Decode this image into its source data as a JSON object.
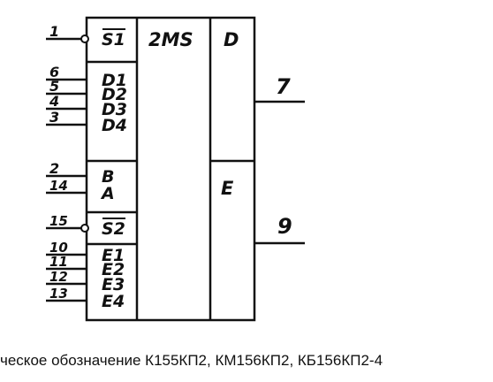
{
  "symbol": {
    "function": "2MS",
    "outputs_header": "D",
    "output_section": "E",
    "inputs": [
      {
        "pin": "1",
        "label": "S1",
        "inverted": true
      },
      {
        "pin": "6",
        "label": "D1",
        "inverted": false
      },
      {
        "pin": "5",
        "label": "D2",
        "inverted": false
      },
      {
        "pin": "4",
        "label": "D3",
        "inverted": false
      },
      {
        "pin": "3",
        "label": "D4",
        "inverted": false
      },
      {
        "pin": "2",
        "label": "B",
        "inverted": false
      },
      {
        "pin": "14",
        "label": "A",
        "inverted": false
      },
      {
        "pin": "15",
        "label": "S2",
        "inverted": true
      },
      {
        "pin": "10",
        "label": "E1",
        "inverted": false
      },
      {
        "pin": "11",
        "label": "E2",
        "inverted": false
      },
      {
        "pin": "12",
        "label": "E3",
        "inverted": false
      },
      {
        "pin": "13",
        "label": "E4",
        "inverted": false
      }
    ],
    "outputs": [
      {
        "pin": "7"
      },
      {
        "pin": "9"
      }
    ]
  },
  "caption": "ческое обозначение К155КП2, КМ156КП2, КБ156КП2-4"
}
